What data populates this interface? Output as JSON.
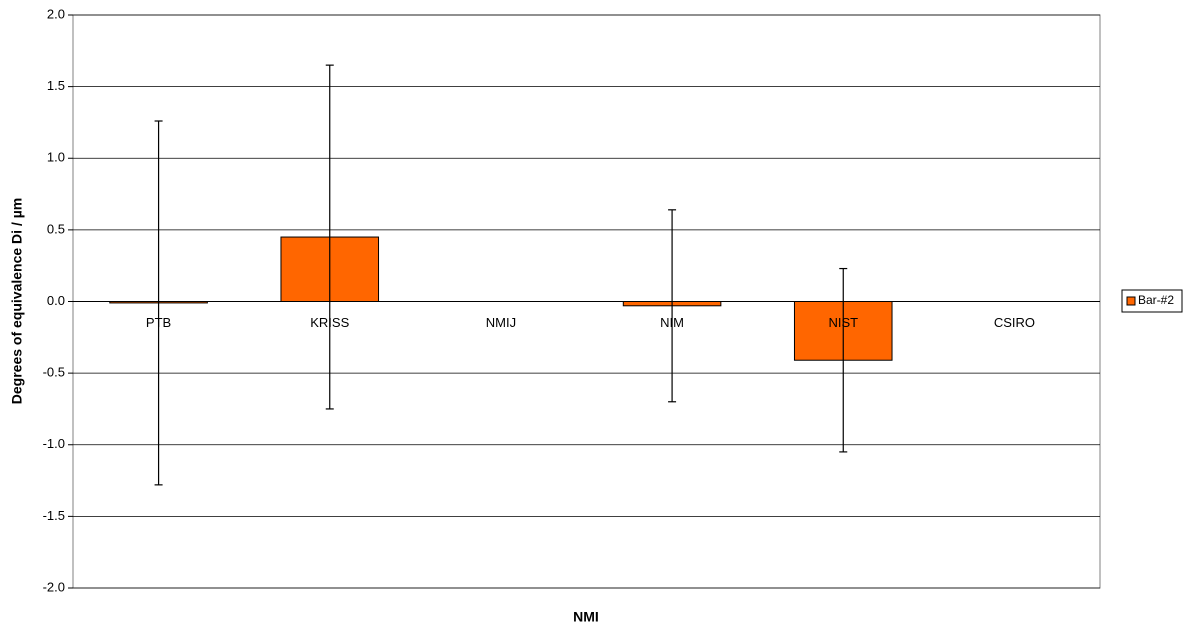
{
  "chart_data": {
    "type": "bar",
    "xlabel": "NMI",
    "ylabel": "Degrees of equivalence Di / µm",
    "categories": [
      "PTB",
      "KRISS",
      "NMIJ",
      "NIM",
      "NIST",
      "CSIRO"
    ],
    "series": [
      {
        "name": "Bar-#2",
        "color": "#ff6600",
        "values": [
          -0.01,
          0.45,
          null,
          -0.03,
          -0.41,
          null
        ],
        "errors": [
          1.27,
          1.2,
          null,
          0.67,
          0.64,
          null
        ]
      }
    ],
    "ylim": [
      -2,
      2
    ],
    "yticks": [
      {
        "value": -2,
        "label": "-2.0"
      },
      {
        "value": -1.5,
        "label": "-1.5"
      },
      {
        "value": -1,
        "label": "-1.0"
      },
      {
        "value": -0.5,
        "label": "-0.5"
      },
      {
        "value": 0,
        "label": "0.0"
      },
      {
        "value": 0.5,
        "label": "0.5"
      },
      {
        "value": 1,
        "label": "1.0"
      },
      {
        "value": 1.5,
        "label": "1.5"
      },
      {
        "value": 2,
        "label": "2.0"
      }
    ],
    "grid": true,
    "legend": "right"
  }
}
